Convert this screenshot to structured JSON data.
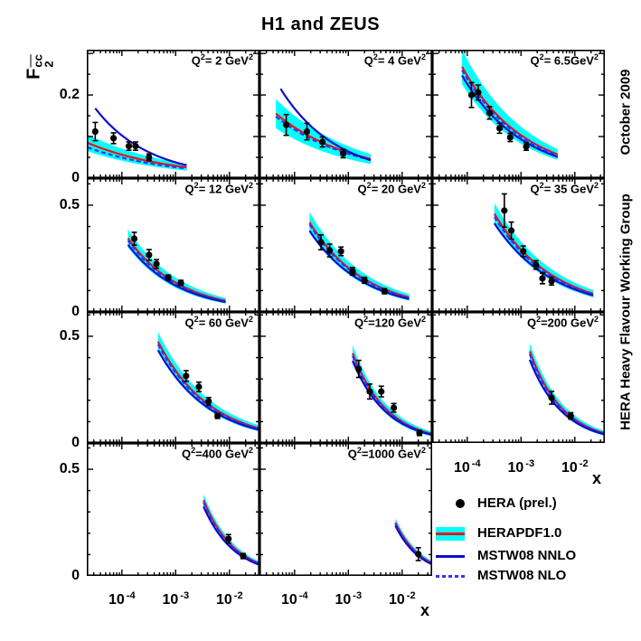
{
  "title": "H1 and ZEUS",
  "y_axis": {
    "base": "F",
    "sub": "2",
    "sup": "cc"
  },
  "right_labels": {
    "top": "October 2009",
    "bottom": "HERA Heavy Flavour Working Group"
  },
  "panel_label_format": {
    "prefix": "Q",
    "prefix_sup": "2",
    "unit_sup": "2"
  },
  "colors": {
    "band": "#00ffff",
    "band_line": "#ee1111",
    "nnlo": "#0d0dcc",
    "nlo": "#3333ff",
    "points": "#000000",
    "frame": "#000000"
  },
  "legend": {
    "items": [
      {
        "type": "point",
        "label": "HERA (prel.)"
      },
      {
        "type": "band",
        "label": "HERAPDF1.0"
      },
      {
        "type": "line",
        "label": "MSTW08 NNLO"
      },
      {
        "type": "dashed",
        "label": "MSTW08 NLO"
      }
    ]
  },
  "chart_data": {
    "type": "line",
    "subtype": "multi-panel-structure-function",
    "title": "H1 and ZEUS",
    "xlabel": "x",
    "ylabel": "F2^ccbar",
    "x_axis": {
      "label": "x",
      "scale": "log",
      "min": 2.3e-05,
      "max": 0.036,
      "tick_labels": [
        {
          "base": "10",
          "exp": "-4"
        },
        {
          "base": "10",
          "exp": "-3"
        },
        {
          "base": "10",
          "exp": "-2"
        }
      ],
      "decade_exponents": [
        -4,
        -3,
        -2
      ]
    },
    "rows": [
      {
        "ymax": 0.309,
        "minor": 0.05,
        "major": 0.1,
        "labels": [
          {
            "value": 0.2,
            "text": "0.2"
          },
          {
            "value": 0.0,
            "text": "0"
          }
        ]
      },
      {
        "ymax": 0.627,
        "minor": 0.1,
        "major": 0.5,
        "labels": [
          {
            "value": 0.5,
            "text": "0.5"
          },
          {
            "value": 0.0,
            "text": "0"
          }
        ]
      },
      {
        "ymax": 0.614,
        "minor": 0.1,
        "major": 0.5,
        "labels": [
          {
            "value": 0.5,
            "text": "0.5"
          },
          {
            "value": 0.0,
            "text": "0"
          }
        ]
      },
      {
        "ymax": 0.623,
        "minor": 0.1,
        "major": 0.5,
        "labels": [
          {
            "value": 0.5,
            "text": "0.5"
          },
          {
            "value": 0.0,
            "text": "0"
          }
        ]
      }
    ],
    "panels": [
      {
        "q2_rest": "= 2 GeV",
        "row": 0,
        "col": 0,
        "points": [
          [
            3.2e-05,
            0.112,
            0.022
          ],
          [
            7e-05,
            0.096,
            0.013
          ],
          [
            0.000135,
            0.077,
            0.01
          ],
          [
            0.00018,
            0.077,
            0.01
          ],
          [
            0.00032,
            0.05,
            0.008
          ]
        ],
        "band": {
          "x": [
            2.3e-05,
            0.0016
          ],
          "yc": [
            0.085,
            0.026
          ],
          "hw": [
            0.02,
            0.008
          ]
        },
        "nnlo": {
          "x": [
            3.2e-05,
            0.0016
          ],
          "y": [
            0.168,
            0.031
          ]
        },
        "nlo": {
          "x": [
            2.3e-05,
            0.0016
          ],
          "y": [
            0.074,
            0.023
          ]
        }
      },
      {
        "q2_rest": "= 4 GeV",
        "row": 0,
        "col": 1,
        "points": [
          [
            7e-05,
            0.128,
            0.025
          ],
          [
            0.00017,
            0.112,
            0.02
          ],
          [
            0.00033,
            0.087,
            0.012
          ],
          [
            0.0008,
            0.059,
            0.01
          ]
        ],
        "band": {
          "x": [
            4.5e-05,
            0.0026
          ],
          "yc": [
            0.155,
            0.046
          ],
          "hw": [
            0.035,
            0.012
          ]
        },
        "nnlo": {
          "x": [
            5.5e-05,
            0.0026
          ],
          "y": [
            0.215,
            0.043
          ]
        },
        "nlo": {
          "x": [
            4.5e-05,
            0.0026
          ],
          "y": [
            0.148,
            0.044
          ]
        }
      },
      {
        "q2_rest": "= 6.5GeV",
        "row": 0,
        "col": 2,
        "points": [
          [
            0.00012,
            0.2,
            0.03
          ],
          [
            0.00016,
            0.206,
            0.018
          ],
          [
            0.00026,
            0.157,
            0.015
          ],
          [
            0.0004,
            0.12,
            0.012
          ],
          [
            0.00063,
            0.098,
            0.01
          ],
          [
            0.00125,
            0.076,
            0.009
          ]
        ],
        "band": {
          "x": [
            8e-05,
            0.0048
          ],
          "yc": [
            0.268,
            0.057
          ],
          "hw": [
            0.042,
            0.013
          ]
        },
        "nnlo": {
          "x": [
            8e-05,
            0.0048
          ],
          "y": [
            0.247,
            0.051
          ]
        },
        "nlo": {
          "x": [
            8e-05,
            0.0048
          ],
          "y": [
            0.26,
            0.055
          ]
        }
      },
      {
        "q2_rest": "= 12 GeV",
        "row": 1,
        "col": 0,
        "points": [
          [
            0.00017,
            0.343,
            0.03
          ],
          [
            0.00032,
            0.267,
            0.025
          ],
          [
            0.00044,
            0.225,
            0.02
          ],
          [
            0.00073,
            0.161,
            0.012
          ],
          [
            0.00125,
            0.136,
            0.012
          ]
        ],
        "band": {
          "x": [
            0.00013,
            0.0085
          ],
          "yc": [
            0.345,
            0.052
          ],
          "hw": [
            0.042,
            0.013
          ]
        },
        "nnlo": {
          "x": [
            0.00013,
            0.0085
          ],
          "y": [
            0.315,
            0.046
          ]
        },
        "nlo": {
          "x": [
            0.00013,
            0.0085
          ],
          "y": [
            0.335,
            0.05
          ]
        }
      },
      {
        "q2_rest": "= 20 GeV",
        "row": 1,
        "col": 1,
        "points": [
          [
            0.00031,
            0.326,
            0.035
          ],
          [
            0.00045,
            0.288,
            0.03
          ],
          [
            0.00073,
            0.284,
            0.02
          ],
          [
            0.0012,
            0.19,
            0.018
          ],
          [
            0.002,
            0.148,
            0.014
          ],
          [
            0.0047,
            0.097,
            0.012
          ]
        ],
        "band": {
          "x": [
            0.00019,
            0.0135
          ],
          "yc": [
            0.42,
            0.068
          ],
          "hw": [
            0.048,
            0.015
          ]
        },
        "nnlo": {
          "x": [
            0.00019,
            0.0135
          ],
          "y": [
            0.38,
            0.06
          ]
        },
        "nlo": {
          "x": [
            0.00019,
            0.0135
          ],
          "y": [
            0.41,
            0.066
          ]
        }
      },
      {
        "q2_rest": "= 35 GeV",
        "row": 1,
        "col": 2,
        "points": [
          [
            0.00049,
            0.475,
            0.078
          ],
          [
            0.00066,
            0.381,
            0.04
          ],
          [
            0.0011,
            0.284,
            0.025
          ],
          [
            0.0019,
            0.22,
            0.02
          ],
          [
            0.0025,
            0.157,
            0.025
          ],
          [
            0.0037,
            0.144,
            0.018
          ]
        ],
        "band": {
          "x": [
            0.00032,
            0.022
          ],
          "yc": [
            0.46,
            0.085
          ],
          "hw": [
            0.05,
            0.017
          ]
        },
        "nnlo": {
          "x": [
            0.00032,
            0.022
          ],
          "y": [
            0.415,
            0.077
          ]
        },
        "nlo": {
          "x": [
            0.00032,
            0.022
          ],
          "y": [
            0.445,
            0.082
          ]
        }
      },
      {
        "q2_rest": "= 60 GeV",
        "row": 2,
        "col": 0,
        "points": [
          [
            0.00156,
            0.314,
            0.025
          ],
          [
            0.0027,
            0.263,
            0.022
          ],
          [
            0.0041,
            0.195,
            0.018
          ],
          [
            0.006,
            0.127,
            0.012
          ]
        ],
        "band": {
          "x": [
            0.00047,
            0.036
          ],
          "yc": [
            0.475,
            0.068
          ],
          "hw": [
            0.045,
            0.014
          ]
        },
        "nnlo": {
          "x": [
            0.00047,
            0.036
          ],
          "y": [
            0.435,
            0.061
          ]
        },
        "nlo": {
          "x": [
            0.00047,
            0.036
          ],
          "y": [
            0.462,
            0.066
          ]
        }
      },
      {
        "q2_rest": "=120 GeV",
        "row": 2,
        "col": 1,
        "points": [
          [
            0.00156,
            0.347,
            0.04
          ],
          [
            0.0025,
            0.241,
            0.035
          ],
          [
            0.0041,
            0.241,
            0.025
          ],
          [
            0.007,
            0.165,
            0.02
          ],
          [
            0.021,
            0.047,
            0.012
          ]
        ],
        "band": {
          "x": [
            0.0012,
            0.036
          ],
          "yc": [
            0.42,
            0.042
          ],
          "hw": [
            0.038,
            0.011
          ]
        },
        "nnlo": {
          "x": [
            0.0012,
            0.036
          ],
          "y": [
            0.385,
            0.038
          ]
        },
        "nlo": {
          "x": [
            0.0012,
            0.036
          ],
          "y": [
            0.408,
            0.041
          ]
        }
      },
      {
        "q2_rest": "=200 GeV",
        "row": 2,
        "col": 2,
        "points": [
          [
            0.0037,
            0.212,
            0.03
          ],
          [
            0.0084,
            0.127,
            0.015
          ]
        ],
        "band": {
          "x": [
            0.00145,
            0.036
          ],
          "yc": [
            0.43,
            0.045
          ],
          "hw": [
            0.038,
            0.011
          ]
        },
        "nnlo": {
          "x": [
            0.00145,
            0.036
          ],
          "y": [
            0.39,
            0.04
          ]
        },
        "nlo": {
          "x": [
            0.00145,
            0.036
          ],
          "y": [
            0.417,
            0.044
          ]
        }
      },
      {
        "q2_rest": "=400 GeV",
        "row": 3,
        "col": 0,
        "points": [
          [
            0.0096,
            0.174,
            0.02
          ],
          [
            0.018,
            0.093,
            0.012
          ]
        ],
        "band": {
          "x": [
            0.0033,
            0.036
          ],
          "yc": [
            0.355,
            0.058
          ],
          "hw": [
            0.028,
            0.01
          ]
        },
        "nnlo": {
          "x": [
            0.0033,
            0.036
          ],
          "y": [
            0.325,
            0.052
          ]
        },
        "nlo": {
          "x": [
            0.0033,
            0.036
          ],
          "y": [
            0.345,
            0.056
          ]
        }
      },
      {
        "q2_rest": "=1000 GeV",
        "row": 3,
        "col": 1,
        "points": [
          [
            0.02,
            0.102,
            0.03
          ]
        ],
        "band": {
          "x": [
            0.0075,
            0.036
          ],
          "yc": [
            0.25,
            0.06
          ],
          "hw": [
            0.02,
            0.01
          ]
        },
        "nnlo": {
          "x": [
            0.0075,
            0.036
          ],
          "y": [
            0.235,
            0.054
          ]
        },
        "nlo": {
          "x": [
            0.0075,
            0.036
          ],
          "y": [
            0.244,
            0.058
          ]
        }
      }
    ],
    "legend_entries": [
      "HERA (prel.)",
      "HERAPDF1.0",
      "MSTW08 NNLO",
      "MSTW08 NLO"
    ]
  }
}
